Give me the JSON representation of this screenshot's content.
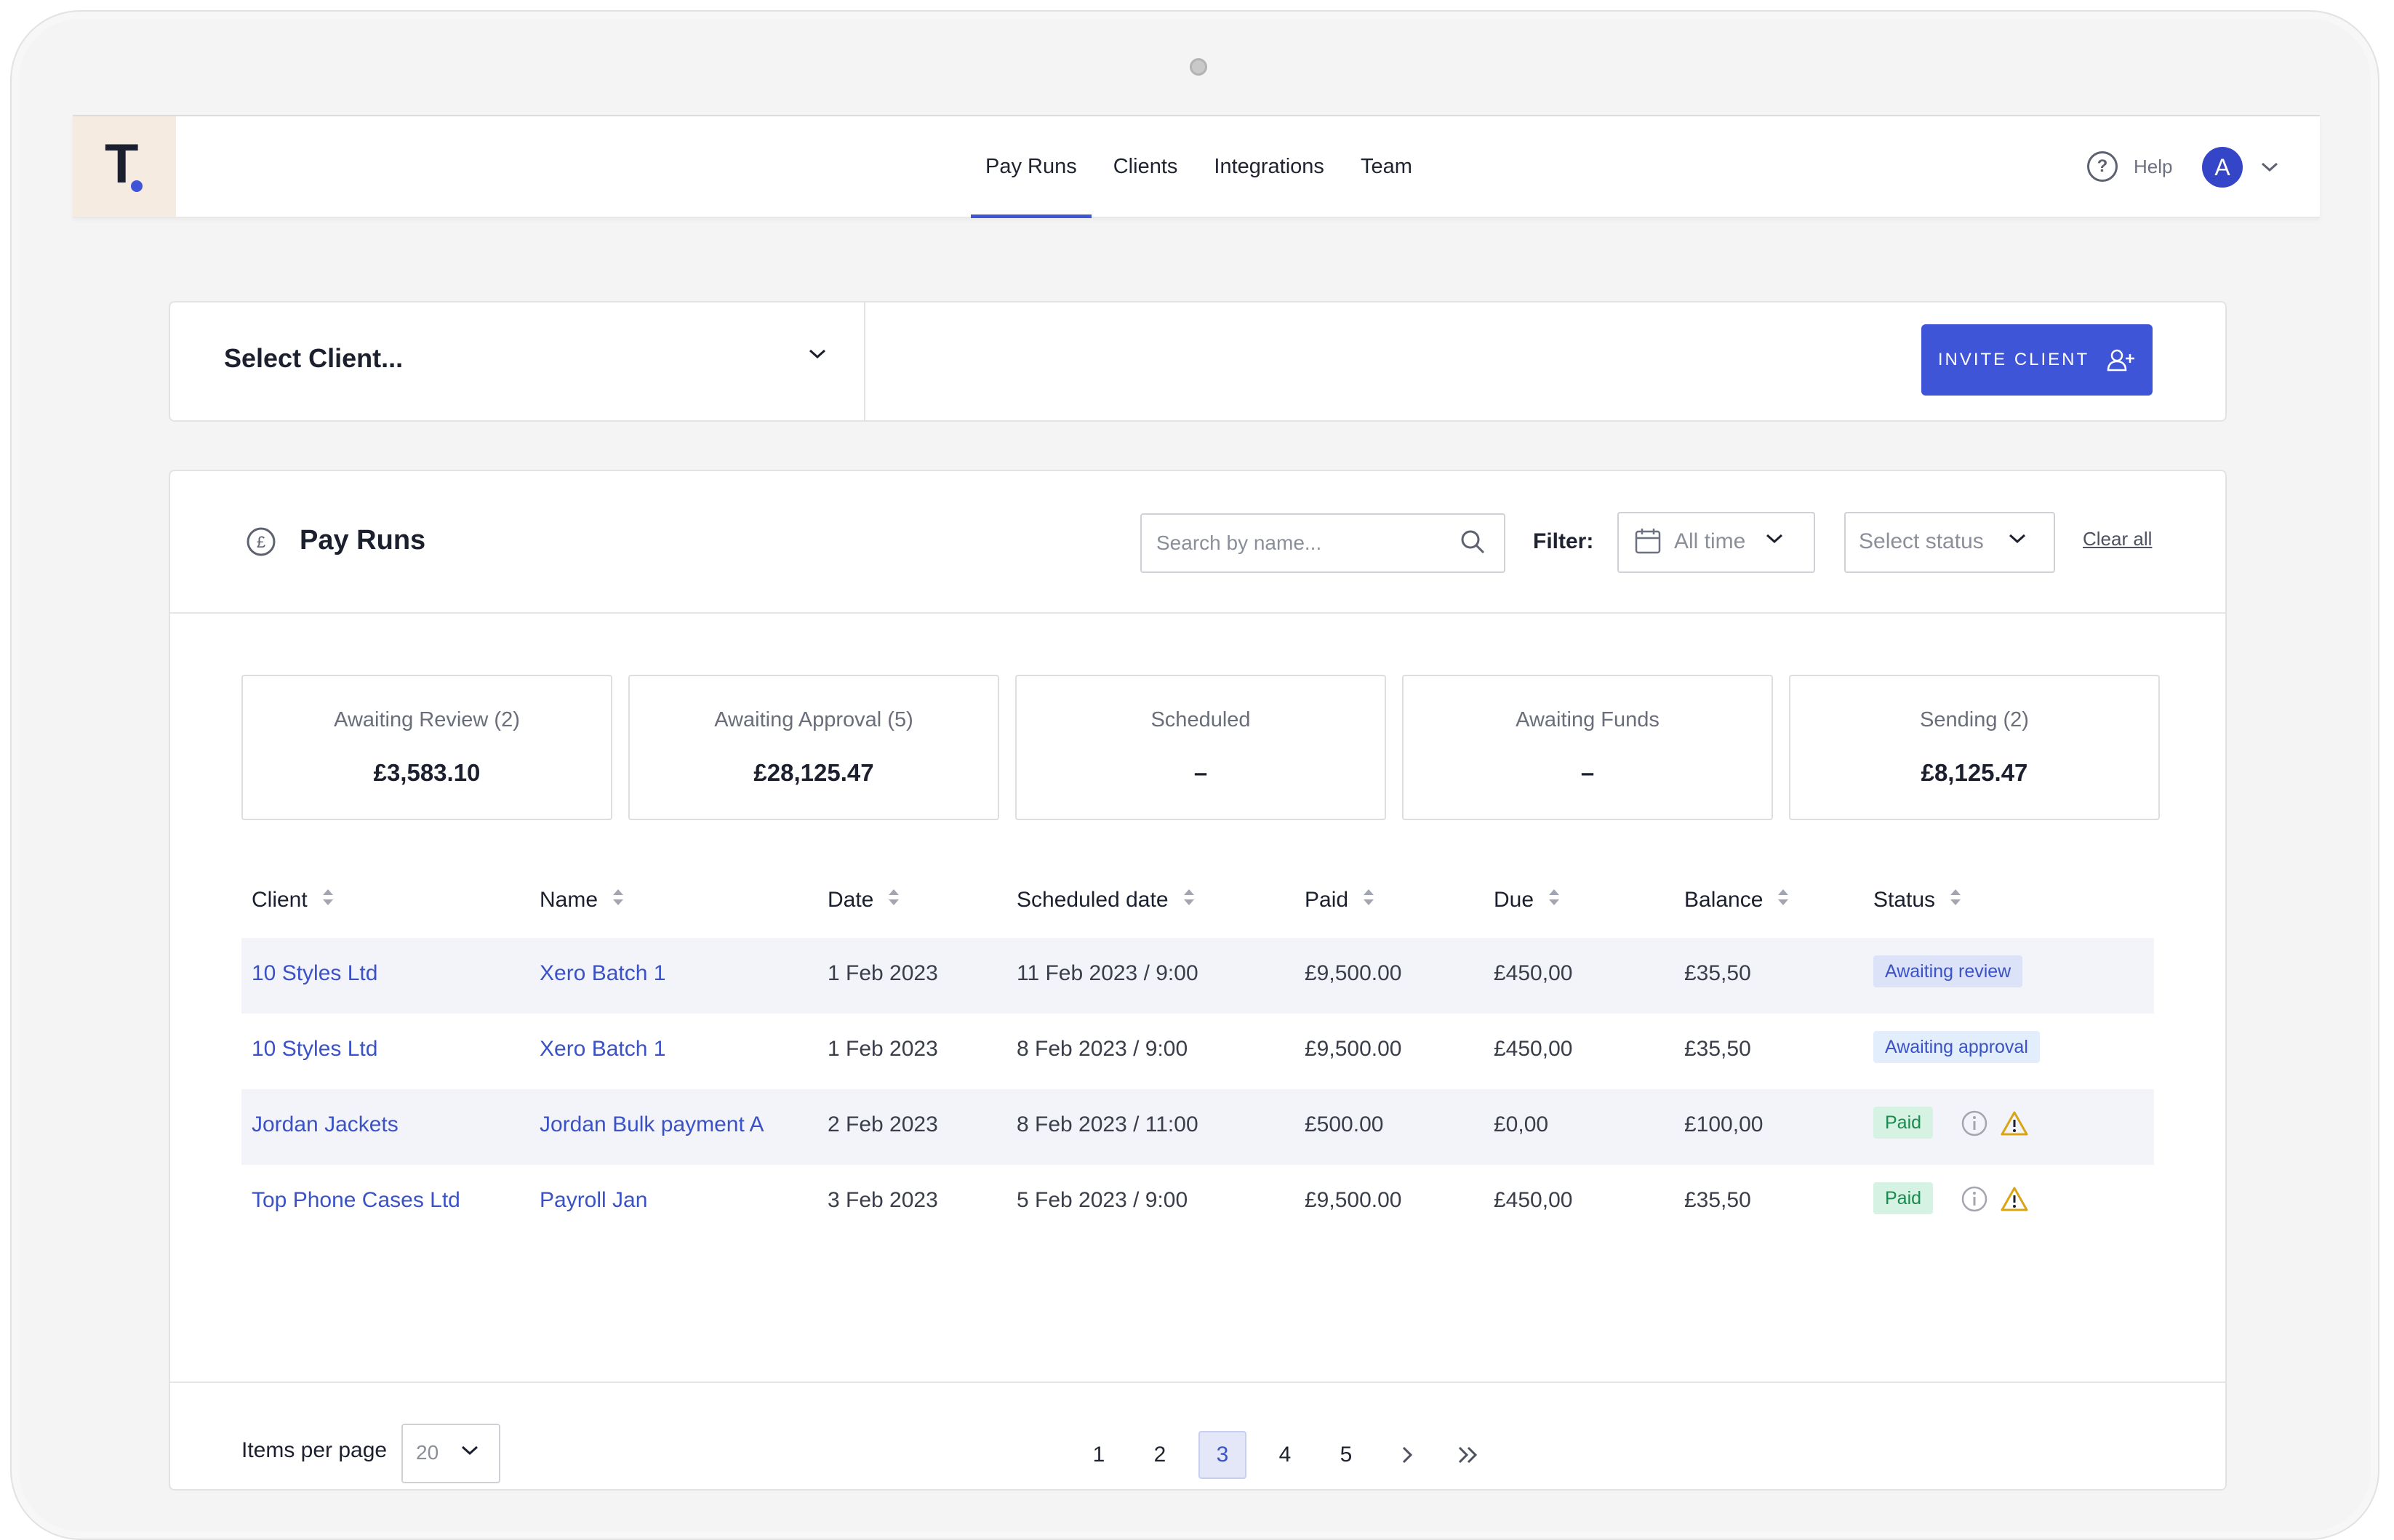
{
  "nav": {
    "logo": "T",
    "items": [
      {
        "label": "Pay Runs",
        "active": true
      },
      {
        "label": "Clients",
        "active": false
      },
      {
        "label": "Integrations",
        "active": false
      },
      {
        "label": "Team",
        "active": false
      }
    ],
    "help_label": "Help",
    "avatar_initial": "A"
  },
  "client_bar": {
    "select_label": "Select Client...",
    "invite_button": "INVITE CLIENT"
  },
  "pay_runs": {
    "title": "Pay Runs",
    "search_placeholder": "Search by name...",
    "filter_label": "Filter:",
    "time_filter": "All time",
    "status_filter": "Select status",
    "clear_all": "Clear all",
    "summary": [
      {
        "label": "Awaiting Review (2)",
        "value": "£3,583.10"
      },
      {
        "label": "Awaiting Approval (5)",
        "value": "£28,125.47"
      },
      {
        "label": "Scheduled",
        "value": "–"
      },
      {
        "label": "Awaiting Funds",
        "value": "–"
      },
      {
        "label": "Sending (2)",
        "value": "£8,125.47"
      }
    ],
    "columns": [
      "Client",
      "Name",
      "Date",
      "Scheduled date",
      "Paid",
      "Due",
      "Balance",
      "Status"
    ],
    "rows": [
      {
        "client": "10 Styles Ltd",
        "name": "Xero Batch 1",
        "date": "1 Feb 2023",
        "scheduled": "11 Feb 2023 / 9:00",
        "paid": "£9,500.00",
        "due": "£450,00",
        "balance": "£35,50",
        "status": "Awaiting review",
        "status_style": "blue",
        "warning": false
      },
      {
        "client": "10 Styles Ltd",
        "name": "Xero Batch 1",
        "date": "1 Feb 2023",
        "scheduled": "8 Feb 2023 / 9:00",
        "paid": "£9,500.00",
        "due": "£450,00",
        "balance": "£35,50",
        "status": "Awaiting approval",
        "status_style": "sky",
        "warning": false
      },
      {
        "client": "Jordan Jackets",
        "name": "Jordan Bulk payment A",
        "date": "2 Feb 2023",
        "scheduled": "8 Feb 2023 / 11:00",
        "paid": "£500.00",
        "due": "£0,00",
        "balance": "£100,00",
        "status": "Paid",
        "status_style": "green",
        "warning": true
      },
      {
        "client": "Top Phone Cases Ltd",
        "name": "Payroll Jan",
        "date": "3 Feb 2023",
        "scheduled": "5 Feb 2023 / 9:00",
        "paid": "£9,500.00",
        "due": "£450,00",
        "balance": "£35,50",
        "status": "Paid",
        "status_style": "green",
        "warning": true
      }
    ],
    "items_per_page_label": "Items per page",
    "items_per_page": "20",
    "pages": [
      "1",
      "2",
      "3",
      "4",
      "5"
    ],
    "current_page": "3"
  },
  "colors": {
    "accent": "#3d55d6",
    "logo_bg": "#f6ebe0",
    "paid_badge": "#d6f2e3",
    "review_badge": "#dce3f8",
    "warning": "#d9a514"
  }
}
